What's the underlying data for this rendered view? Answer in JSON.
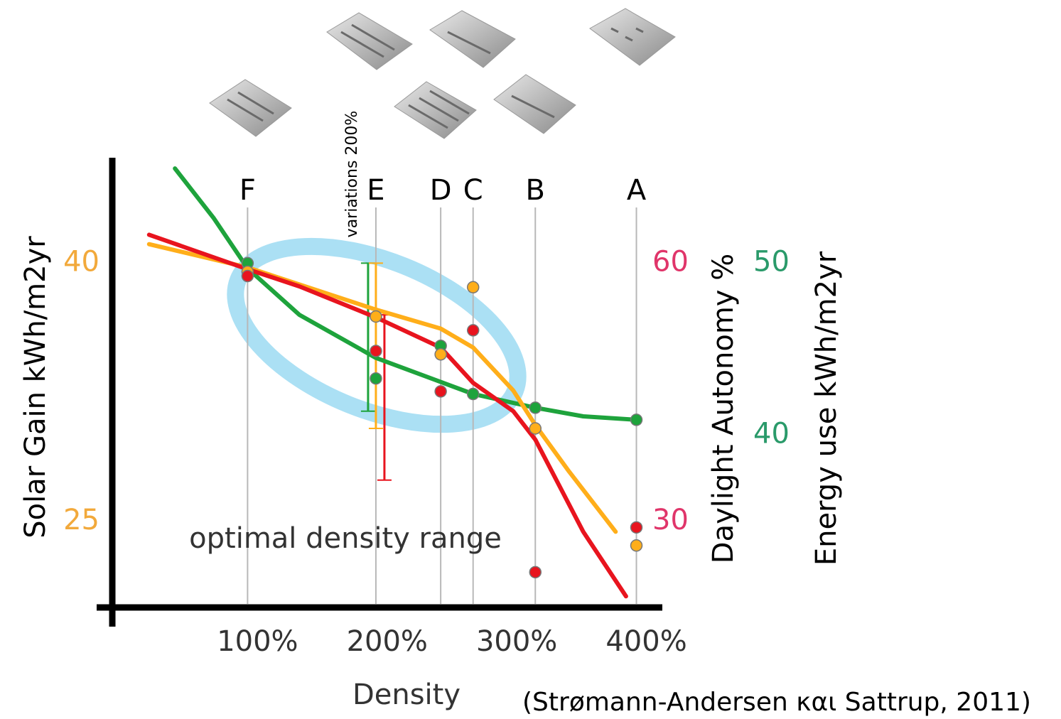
{
  "chart_data": {
    "type": "line",
    "x_label": "Density",
    "y_label": "Solar Gain kWh/m2yr",
    "y2_label": "Daylight Autonomy %",
    "y3_label": "Energy use kWh/m2yr",
    "annotation": "optimal density range",
    "range_label": "variations 200%",
    "source": "(Strømann-Andersen και Sattrup, 2011)",
    "xlim": [
      0,
      420
    ],
    "xticks": [
      {
        "value": 100,
        "label": "100%"
      },
      {
        "value": 200,
        "label": "200%"
      },
      {
        "value": 300,
        "label": "300%"
      },
      {
        "value": 400,
        "label": "400%"
      }
    ],
    "ylim": [
      20,
      46
    ],
    "yticks": [
      25,
      40
    ],
    "ytick_color": "#f2a93b",
    "y2lim": [
      20,
      72
    ],
    "y2ticks": [
      30,
      60
    ],
    "y2tick_color": "#e0356a",
    "y3lim": [
      30,
      56
    ],
    "y3ticks": [
      40,
      50
    ],
    "y3tick_color": "#2a9a6a",
    "grid": false,
    "markers": [
      {
        "label": "F",
        "x": 100
      },
      {
        "label": "E",
        "x": 199
      },
      {
        "label": "D",
        "x": 249
      },
      {
        "label": "C",
        "x": 274
      },
      {
        "label": "B",
        "x": 322
      },
      {
        "label": "A",
        "x": 400
      }
    ],
    "point_x": [
      100,
      199,
      249,
      274,
      322,
      400
    ],
    "range_x": 199,
    "series": [
      {
        "axis": "y3",
        "color": "#1ea33c",
        "x": [
          44,
          74,
          100,
          140,
          199,
          249,
          274,
          322,
          359,
          400
        ],
        "values": [
          55.5,
          52.6,
          49.7,
          47.0,
          44.5,
          43.1,
          42.4,
          41.6,
          41.1,
          40.9
        ],
        "points": [
          50,
          43.3,
          45.2,
          42.4,
          41.6,
          40.9
        ],
        "range": [
          41.4,
          50
        ]
      },
      {
        "axis": "y",
        "color": "#ffae1a",
        "x": [
          24,
          100,
          199,
          249,
          274,
          305,
          322,
          348,
          384
        ],
        "values": [
          41.1,
          39.75,
          37.3,
          36.2,
          35.1,
          32.6,
          30.6,
          27.9,
          24.4
        ],
        "points": [
          39.5,
          36.9,
          34.7,
          38.6,
          30.4,
          23.6
        ],
        "range": [
          30.4,
          40
        ]
      },
      {
        "axis": "y2",
        "color": "#e8141e",
        "x": [
          24,
          100,
          140,
          199,
          249,
          274,
          305,
          322,
          359,
          392
        ],
        "values": [
          63.3,
          59.3,
          57.3,
          53.7,
          50.2,
          46.1,
          42.8,
          39.5,
          28.8,
          21.3
        ],
        "points": [
          58.5,
          49.8,
          45.1,
          52.2,
          24.1,
          29.3
        ],
        "range": [
          34.8,
          54
        ]
      }
    ]
  }
}
